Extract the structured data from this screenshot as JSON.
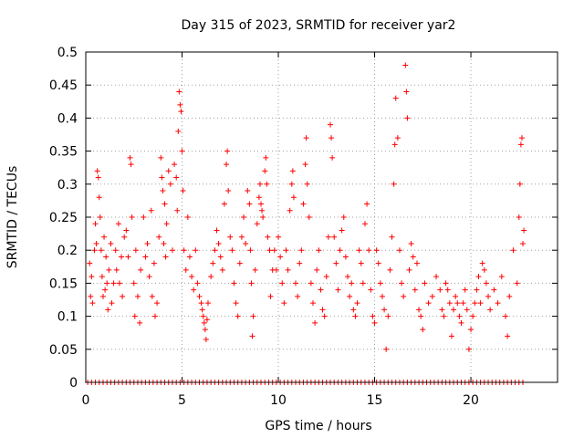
{
  "chart_data": {
    "type": "scatter",
    "title": "Day 315 of 2023, SRMTID for receiver yar2",
    "xlabel": "GPS time / hours",
    "ylabel": "SRMTID / TECUs",
    "xlim": [
      0,
      24.5
    ],
    "ylim": [
      0,
      0.5
    ],
    "xticks": [
      0,
      5,
      10,
      15,
      20
    ],
    "xtick_labels": [
      "0",
      "5",
      "10",
      "15",
      "20"
    ],
    "yticks": [
      0,
      0.05,
      0.1,
      0.15,
      0.2,
      0.25,
      0.3,
      0.35,
      0.4,
      0.45,
      0.5
    ],
    "ytick_labels": [
      "0",
      "0.05",
      "0.1",
      "0.15",
      "0.2",
      "0.25",
      "0.3",
      "0.35",
      "0.4",
      "0.45",
      "0.5"
    ],
    "grid": true,
    "marker": "+",
    "marker_color": "#ff0000",
    "series": [
      {
        "name": "SRMTID",
        "points": [
          [
            0.2,
            0.18
          ],
          [
            0.25,
            0.13
          ],
          [
            0.3,
            0.16
          ],
          [
            0.35,
            0.12
          ],
          [
            0.45,
            0.2
          ],
          [
            0.5,
            0.24
          ],
          [
            0.55,
            0.21
          ],
          [
            0.6,
            0.32
          ],
          [
            0.65,
            0.31
          ],
          [
            0.7,
            0.28
          ],
          [
            0.75,
            0.25
          ],
          [
            0.8,
            0.2
          ],
          [
            0.85,
            0.16
          ],
          [
            0.9,
            0.13
          ],
          [
            0.95,
            0.22
          ],
          [
            1.0,
            0.14
          ],
          [
            1.05,
            0.19
          ],
          [
            1.1,
            0.15
          ],
          [
            1.15,
            0.11
          ],
          [
            1.2,
            0.17
          ],
          [
            1.3,
            0.21
          ],
          [
            1.35,
            0.12
          ],
          [
            1.45,
            0.15
          ],
          [
            1.55,
            0.2
          ],
          [
            1.6,
            0.17
          ],
          [
            1.7,
            0.24
          ],
          [
            1.75,
            0.15
          ],
          [
            1.85,
            0.19
          ],
          [
            1.9,
            0.13
          ],
          [
            2.0,
            0.22
          ],
          [
            2.1,
            0.23
          ],
          [
            2.2,
            0.19
          ],
          [
            2.3,
            0.34
          ],
          [
            2.35,
            0.33
          ],
          [
            2.4,
            0.25
          ],
          [
            2.5,
            0.15
          ],
          [
            2.55,
            0.1
          ],
          [
            2.6,
            0.2
          ],
          [
            2.7,
            0.13
          ],
          [
            2.8,
            0.09
          ],
          [
            2.85,
            0.17
          ],
          [
            3.0,
            0.25
          ],
          [
            3.1,
            0.19
          ],
          [
            3.2,
            0.21
          ],
          [
            3.3,
            0.16
          ],
          [
            3.4,
            0.26
          ],
          [
            3.45,
            0.13
          ],
          [
            3.55,
            0.18
          ],
          [
            3.6,
            0.1
          ],
          [
            3.7,
            0.12
          ],
          [
            3.8,
            0.22
          ],
          [
            3.9,
            0.34
          ],
          [
            3.95,
            0.31
          ],
          [
            4.0,
            0.29
          ],
          [
            4.05,
            0.21
          ],
          [
            4.1,
            0.27
          ],
          [
            4.15,
            0.19
          ],
          [
            4.2,
            0.24
          ],
          [
            4.3,
            0.32
          ],
          [
            4.4,
            0.3
          ],
          [
            4.5,
            0.2
          ],
          [
            4.6,
            0.33
          ],
          [
            4.7,
            0.31
          ],
          [
            4.75,
            0.26
          ],
          [
            4.8,
            0.38
          ],
          [
            4.85,
            0.44
          ],
          [
            4.9,
            0.42
          ],
          [
            4.95,
            0.41
          ],
          [
            5.0,
            0.35
          ],
          [
            5.05,
            0.29
          ],
          [
            5.1,
            0.2
          ],
          [
            5.2,
            0.17
          ],
          [
            5.3,
            0.25
          ],
          [
            5.4,
            0.19
          ],
          [
            5.5,
            0.16
          ],
          [
            5.6,
            0.14
          ],
          [
            5.7,
            0.2
          ],
          [
            5.8,
            0.15
          ],
          [
            5.9,
            0.13
          ],
          [
            6.0,
            0.12
          ],
          [
            6.05,
            0.11
          ],
          [
            6.1,
            0.1
          ],
          [
            6.15,
            0.09
          ],
          [
            6.2,
            0.08
          ],
          [
            6.25,
            0.065
          ],
          [
            6.3,
            0.095
          ],
          [
            6.35,
            0.12
          ],
          [
            6.5,
            0.16
          ],
          [
            6.6,
            0.18
          ],
          [
            6.7,
            0.2
          ],
          [
            6.8,
            0.23
          ],
          [
            6.9,
            0.21
          ],
          [
            7.0,
            0.19
          ],
          [
            7.1,
            0.17
          ],
          [
            7.2,
            0.27
          ],
          [
            7.3,
            0.33
          ],
          [
            7.35,
            0.35
          ],
          [
            7.4,
            0.29
          ],
          [
            7.5,
            0.22
          ],
          [
            7.6,
            0.2
          ],
          [
            7.7,
            0.15
          ],
          [
            7.8,
            0.12
          ],
          [
            7.9,
            0.1
          ],
          [
            8.0,
            0.18
          ],
          [
            8.1,
            0.22
          ],
          [
            8.2,
            0.25
          ],
          [
            8.3,
            0.21
          ],
          [
            8.4,
            0.29
          ],
          [
            8.5,
            0.27
          ],
          [
            8.55,
            0.2
          ],
          [
            8.6,
            0.15
          ],
          [
            8.65,
            0.07
          ],
          [
            8.7,
            0.1
          ],
          [
            8.8,
            0.17
          ],
          [
            8.9,
            0.24
          ],
          [
            9.0,
            0.28
          ],
          [
            9.05,
            0.3
          ],
          [
            9.1,
            0.27
          ],
          [
            9.15,
            0.26
          ],
          [
            9.2,
            0.25
          ],
          [
            9.3,
            0.32
          ],
          [
            9.35,
            0.34
          ],
          [
            9.4,
            0.3
          ],
          [
            9.45,
            0.22
          ],
          [
            9.55,
            0.2
          ],
          [
            9.6,
            0.13
          ],
          [
            9.7,
            0.17
          ],
          [
            9.8,
            0.2
          ],
          [
            9.9,
            0.17
          ],
          [
            10.0,
            0.22
          ],
          [
            10.1,
            0.19
          ],
          [
            10.2,
            0.15
          ],
          [
            10.3,
            0.12
          ],
          [
            10.4,
            0.2
          ],
          [
            10.5,
            0.17
          ],
          [
            10.6,
            0.26
          ],
          [
            10.7,
            0.3
          ],
          [
            10.75,
            0.32
          ],
          [
            10.8,
            0.28
          ],
          [
            10.9,
            0.15
          ],
          [
            11.0,
            0.13
          ],
          [
            11.1,
            0.18
          ],
          [
            11.2,
            0.2
          ],
          [
            11.3,
            0.27
          ],
          [
            11.4,
            0.33
          ],
          [
            11.45,
            0.37
          ],
          [
            11.5,
            0.3
          ],
          [
            11.6,
            0.25
          ],
          [
            11.7,
            0.15
          ],
          [
            11.8,
            0.12
          ],
          [
            11.9,
            0.09
          ],
          [
            12.0,
            0.17
          ],
          [
            12.1,
            0.2
          ],
          [
            12.2,
            0.14
          ],
          [
            12.3,
            0.11
          ],
          [
            12.4,
            0.1
          ],
          [
            12.5,
            0.16
          ],
          [
            12.6,
            0.22
          ],
          [
            12.7,
            0.39
          ],
          [
            12.75,
            0.37
          ],
          [
            12.8,
            0.34
          ],
          [
            12.9,
            0.22
          ],
          [
            13.0,
            0.18
          ],
          [
            13.1,
            0.14
          ],
          [
            13.2,
            0.2
          ],
          [
            13.3,
            0.23
          ],
          [
            13.4,
            0.25
          ],
          [
            13.5,
            0.19
          ],
          [
            13.6,
            0.16
          ],
          [
            13.7,
            0.13
          ],
          [
            13.8,
            0.15
          ],
          [
            13.9,
            0.11
          ],
          [
            14.0,
            0.1
          ],
          [
            14.1,
            0.12
          ],
          [
            14.2,
            0.2
          ],
          [
            14.3,
            0.18
          ],
          [
            14.4,
            0.15
          ],
          [
            14.5,
            0.24
          ],
          [
            14.6,
            0.27
          ],
          [
            14.7,
            0.2
          ],
          [
            14.8,
            0.14
          ],
          [
            14.9,
            0.1
          ],
          [
            15.0,
            0.09
          ],
          [
            15.1,
            0.2
          ],
          [
            15.2,
            0.18
          ],
          [
            15.3,
            0.15
          ],
          [
            15.4,
            0.13
          ],
          [
            15.5,
            0.11
          ],
          [
            15.6,
            0.05
          ],
          [
            15.7,
            0.1
          ],
          [
            15.8,
            0.17
          ],
          [
            15.9,
            0.22
          ],
          [
            16.0,
            0.3
          ],
          [
            16.05,
            0.36
          ],
          [
            16.1,
            0.43
          ],
          [
            16.2,
            0.37
          ],
          [
            16.3,
            0.2
          ],
          [
            16.4,
            0.15
          ],
          [
            16.5,
            0.13
          ],
          [
            16.6,
            0.48
          ],
          [
            16.65,
            0.44
          ],
          [
            16.7,
            0.4
          ],
          [
            16.8,
            0.17
          ],
          [
            16.9,
            0.21
          ],
          [
            17.0,
            0.19
          ],
          [
            17.1,
            0.14
          ],
          [
            17.2,
            0.18
          ],
          [
            17.3,
            0.11
          ],
          [
            17.4,
            0.1
          ],
          [
            17.5,
            0.08
          ],
          [
            17.6,
            0.15
          ],
          [
            17.8,
            0.12
          ],
          [
            18.0,
            0.13
          ],
          [
            18.2,
            0.16
          ],
          [
            18.4,
            0.14
          ],
          [
            18.5,
            0.11
          ],
          [
            18.6,
            0.1
          ],
          [
            18.7,
            0.15
          ],
          [
            18.8,
            0.14
          ],
          [
            18.9,
            0.12
          ],
          [
            19.0,
            0.07
          ],
          [
            19.1,
            0.11
          ],
          [
            19.2,
            0.13
          ],
          [
            19.3,
            0.12
          ],
          [
            19.4,
            0.1
          ],
          [
            19.5,
            0.09
          ],
          [
            19.6,
            0.12
          ],
          [
            19.7,
            0.14
          ],
          [
            19.8,
            0.11
          ],
          [
            19.9,
            0.05
          ],
          [
            20.0,
            0.08
          ],
          [
            20.1,
            0.1
          ],
          [
            20.2,
            0.12
          ],
          [
            20.3,
            0.14
          ],
          [
            20.4,
            0.16
          ],
          [
            20.5,
            0.12
          ],
          [
            20.6,
            0.18
          ],
          [
            20.7,
            0.17
          ],
          [
            20.8,
            0.15
          ],
          [
            20.9,
            0.13
          ],
          [
            21.0,
            0.11
          ],
          [
            21.2,
            0.14
          ],
          [
            21.4,
            0.12
          ],
          [
            21.6,
            0.16
          ],
          [
            21.8,
            0.1
          ],
          [
            21.9,
            0.07
          ],
          [
            22.0,
            0.13
          ],
          [
            22.2,
            0.2
          ],
          [
            22.4,
            0.15
          ],
          [
            22.5,
            0.25
          ],
          [
            22.55,
            0.3
          ],
          [
            22.6,
            0.36
          ],
          [
            22.65,
            0.37
          ],
          [
            22.7,
            0.21
          ],
          [
            22.75,
            0.23
          ]
        ],
        "zero_points_x": [
          0.1,
          0.3,
          0.5,
          0.7,
          0.9,
          1.1,
          1.3,
          1.5,
          1.7,
          1.9,
          2.1,
          2.3,
          2.5,
          2.7,
          2.9,
          3.1,
          3.3,
          3.5,
          3.7,
          3.9,
          4.1,
          4.3,
          4.5,
          4.7,
          4.9,
          5.1,
          5.3,
          5.5,
          5.7,
          5.9,
          6.1,
          6.3,
          6.5,
          6.7,
          6.9,
          7.1,
          7.3,
          7.5,
          7.7,
          7.9,
          8.1,
          8.3,
          8.5,
          8.7,
          8.9,
          9.1,
          9.3,
          9.5,
          9.7,
          9.9,
          10.1,
          10.3,
          10.5,
          10.7,
          10.9,
          11.1,
          11.3,
          11.5,
          11.7,
          11.9,
          12.1,
          12.3,
          12.5,
          12.7,
          12.9,
          13.1,
          13.3,
          13.5,
          13.7,
          13.9,
          14.1,
          14.3,
          14.5,
          14.7,
          14.9,
          15.1,
          15.3,
          15.5,
          15.7,
          15.9,
          16.1,
          16.3,
          16.5,
          16.7,
          16.9,
          17.1,
          17.3,
          17.5,
          17.7,
          17.9,
          18.1,
          18.3,
          18.5,
          18.7,
          18.9,
          19.1,
          19.3,
          19.5,
          19.7,
          19.9,
          20.1,
          20.3,
          20.5,
          20.7,
          20.9,
          21.1,
          21.3,
          21.5,
          21.7,
          21.9,
          22.1,
          22.3,
          22.5,
          22.7
        ]
      }
    ]
  }
}
